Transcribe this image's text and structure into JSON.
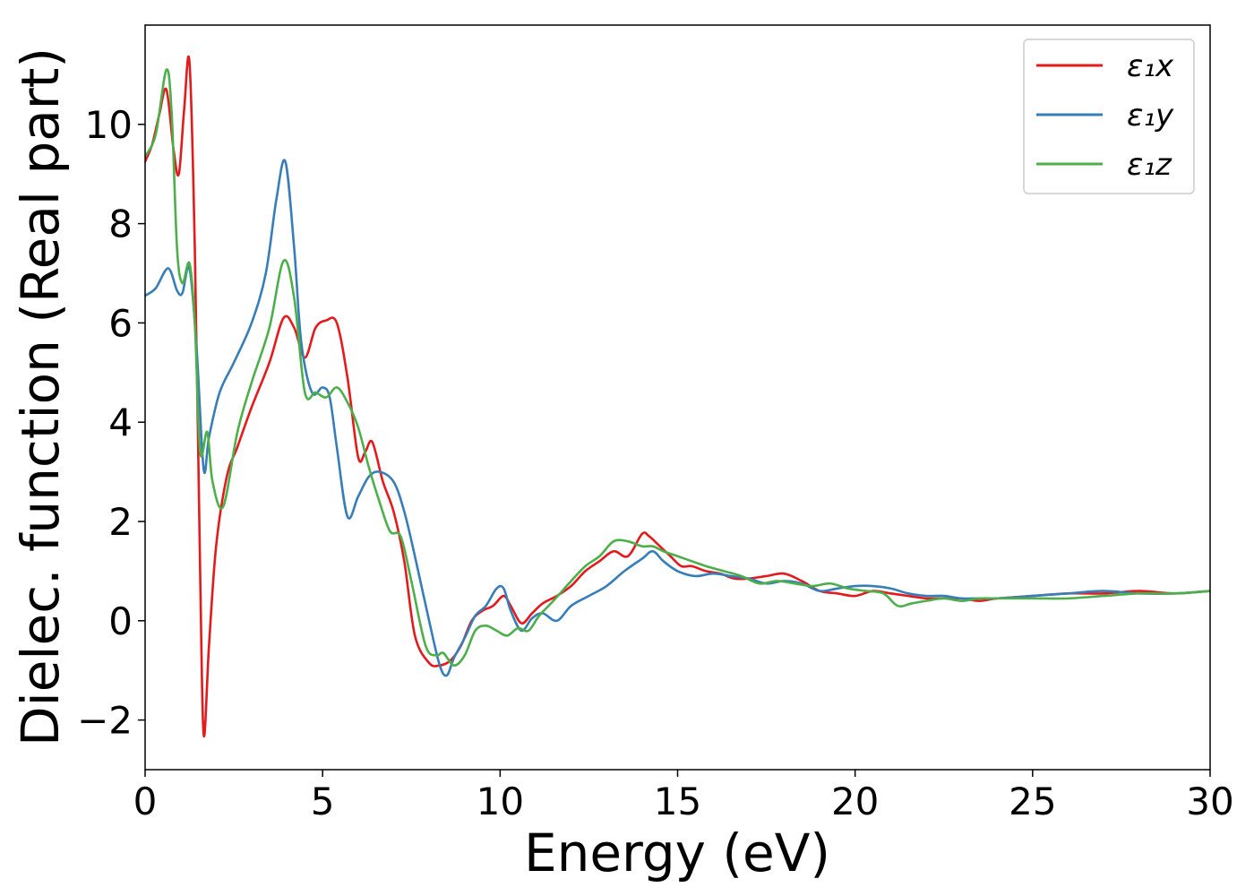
{
  "chart_data": {
    "type": "line",
    "title": "",
    "xlabel": "Energy (eV)",
    "ylabel": "Dielec. function (Real part)",
    "xlim": [
      0,
      30
    ],
    "ylim": [
      -3,
      12
    ],
    "xticks": [
      0,
      5,
      10,
      15,
      20,
      25,
      30
    ],
    "xtick_labels": [
      "0",
      "5",
      "10",
      "15",
      "20",
      "25",
      "30"
    ],
    "yticks": [
      -2,
      0,
      2,
      4,
      6,
      8,
      10
    ],
    "ytick_labels": [
      "−2",
      "0",
      "2",
      "4",
      "6",
      "8",
      "10"
    ],
    "grid": false,
    "legend_position": "top-right",
    "series": [
      {
        "name": "ε₁x",
        "color": "#e41a1c",
        "x": [
          0,
          0.2,
          0.4,
          0.6,
          0.8,
          0.95,
          1.1,
          1.25,
          1.4,
          1.55,
          1.65,
          1.8,
          2.0,
          2.3,
          2.6,
          3.0,
          3.5,
          3.9,
          4.2,
          4.5,
          4.8,
          5.1,
          5.4,
          5.7,
          6.0,
          6.2,
          6.4,
          6.7,
          7.0,
          7.3,
          7.6,
          8.0,
          8.3,
          8.6,
          8.9,
          9.2,
          9.5,
          9.8,
          10.1,
          10.3,
          10.6,
          10.9,
          11.2,
          11.6,
          12.0,
          12.4,
          12.8,
          13.2,
          13.6,
          14.0,
          14.2,
          14.5,
          14.8,
          15.1,
          15.4,
          15.8,
          16.2,
          16.6,
          17.0,
          17.5,
          18.0,
          18.5,
          19.0,
          19.5,
          20.0,
          20.5,
          21.0,
          21.5,
          22.0,
          22.5,
          23.0,
          23.5,
          24.0,
          25.0,
          26.0,
          27.0,
          28.0,
          29.0,
          30.0
        ],
        "y": [
          9.25,
          9.6,
          10.2,
          10.7,
          9.5,
          9.0,
          10.3,
          11.25,
          7.5,
          1.0,
          -2.3,
          -0.5,
          1.5,
          2.9,
          3.5,
          4.3,
          5.2,
          6.1,
          5.9,
          5.3,
          5.9,
          6.05,
          6.0,
          4.9,
          3.3,
          3.4,
          3.6,
          2.8,
          2.2,
          1.2,
          -0.3,
          -0.85,
          -0.9,
          -0.8,
          -0.5,
          0.0,
          0.2,
          0.3,
          0.5,
          0.3,
          -0.05,
          0.15,
          0.35,
          0.5,
          0.7,
          1.0,
          1.2,
          1.4,
          1.3,
          1.75,
          1.7,
          1.5,
          1.3,
          1.1,
          1.1,
          1.0,
          0.95,
          0.85,
          0.85,
          0.9,
          0.95,
          0.8,
          0.6,
          0.55,
          0.5,
          0.6,
          0.55,
          0.5,
          0.45,
          0.45,
          0.45,
          0.4,
          0.45,
          0.5,
          0.55,
          0.55,
          0.6,
          0.55,
          0.6
        ]
      },
      {
        "name": "ε₁y",
        "color": "#377eb8",
        "x": [
          0,
          0.3,
          0.65,
          0.9,
          1.05,
          1.25,
          1.45,
          1.65,
          1.8,
          2.1,
          2.5,
          3.0,
          3.4,
          3.7,
          3.95,
          4.2,
          4.4,
          4.7,
          5.0,
          5.2,
          5.4,
          5.7,
          6.0,
          6.3,
          6.6,
          7.0,
          7.3,
          7.6,
          8.0,
          8.3,
          8.5,
          8.7,
          9.0,
          9.3,
          9.6,
          9.9,
          10.1,
          10.3,
          10.6,
          10.9,
          11.2,
          11.6,
          12.0,
          12.5,
          13.0,
          13.5,
          14.0,
          14.3,
          14.6,
          15.0,
          15.5,
          16.0,
          16.5,
          17.0,
          17.5,
          18.0,
          18.5,
          19.0,
          19.5,
          20.0,
          20.5,
          21.0,
          21.5,
          22.0,
          22.5,
          23.0,
          23.5,
          24.0,
          25.0,
          26.0,
          27.0,
          28.0,
          29.0,
          30.0
        ],
        "y": [
          6.55,
          6.7,
          7.1,
          6.65,
          6.6,
          7.1,
          5.5,
          3.05,
          3.7,
          4.6,
          5.2,
          6.0,
          7.0,
          8.5,
          9.25,
          7.5,
          5.6,
          4.6,
          4.7,
          4.5,
          3.5,
          2.1,
          2.5,
          2.9,
          3.0,
          2.8,
          2.2,
          1.3,
          0.0,
          -0.9,
          -1.1,
          -0.75,
          -0.35,
          0.1,
          0.3,
          0.65,
          0.65,
          0.2,
          -0.2,
          0.05,
          0.15,
          0.0,
          0.3,
          0.5,
          0.7,
          1.0,
          1.25,
          1.4,
          1.2,
          1.0,
          0.9,
          0.95,
          0.9,
          0.85,
          0.75,
          0.8,
          0.75,
          0.6,
          0.65,
          0.7,
          0.7,
          0.65,
          0.55,
          0.5,
          0.5,
          0.45,
          0.45,
          0.45,
          0.5,
          0.55,
          0.6,
          0.55,
          0.55,
          0.6
        ]
      },
      {
        "name": "ε₁z",
        "color": "#4daf4a",
        "x": [
          0,
          0.3,
          0.6,
          0.75,
          0.9,
          1.05,
          1.25,
          1.4,
          1.55,
          1.75,
          1.9,
          2.2,
          2.6,
          3.0,
          3.5,
          3.9,
          4.2,
          4.5,
          4.8,
          5.1,
          5.4,
          5.7,
          6.0,
          6.3,
          6.6,
          6.9,
          7.2,
          7.5,
          7.9,
          8.2,
          8.4,
          8.7,
          9.0,
          9.3,
          9.6,
          9.9,
          10.2,
          10.5,
          10.8,
          11.1,
          11.5,
          12.0,
          12.4,
          12.8,
          13.2,
          13.6,
          14.0,
          14.3,
          14.6,
          15.0,
          15.4,
          15.8,
          16.3,
          16.8,
          17.3,
          17.8,
          18.3,
          18.8,
          19.3,
          19.8,
          20.3,
          20.8,
          21.2,
          21.6,
          22.0,
          22.5,
          23.0,
          23.5,
          24.0,
          25.0,
          26.0,
          27.0,
          28.0,
          29.0,
          30.0
        ],
        "y": [
          9.35,
          9.8,
          11.1,
          10.2,
          7.5,
          6.8,
          7.2,
          6.0,
          3.4,
          3.8,
          2.8,
          2.3,
          3.8,
          4.8,
          5.9,
          7.25,
          6.5,
          4.6,
          4.6,
          4.5,
          4.7,
          4.4,
          3.9,
          3.1,
          2.4,
          1.8,
          1.7,
          0.8,
          -0.5,
          -0.7,
          -0.65,
          -0.9,
          -0.7,
          -0.2,
          -0.1,
          -0.2,
          -0.3,
          -0.15,
          -0.2,
          0.1,
          0.4,
          0.8,
          1.1,
          1.3,
          1.6,
          1.6,
          1.5,
          1.5,
          1.4,
          1.3,
          1.2,
          1.1,
          1.0,
          0.9,
          0.75,
          0.8,
          0.75,
          0.7,
          0.75,
          0.65,
          0.6,
          0.55,
          0.3,
          0.35,
          0.4,
          0.45,
          0.4,
          0.45,
          0.45,
          0.45,
          0.45,
          0.5,
          0.55,
          0.55,
          0.6
        ]
      }
    ]
  }
}
